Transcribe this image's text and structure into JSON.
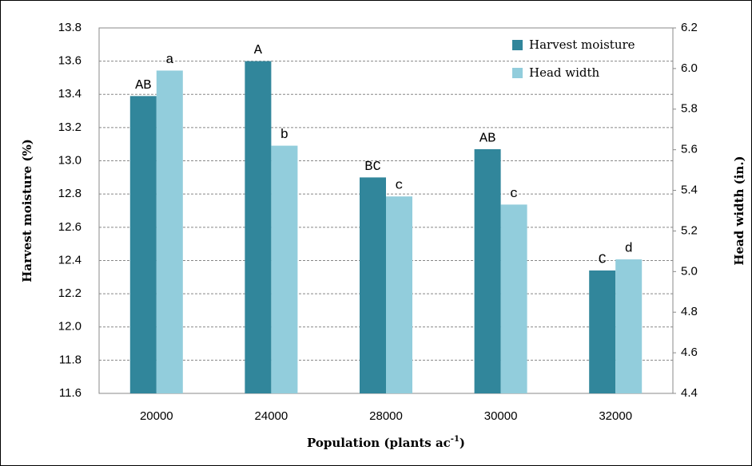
{
  "chart_data": {
    "type": "bar",
    "xlabel": {
      "text": "Population (plants ac",
      "sup": "-1",
      "tail": ")"
    },
    "ylabel": "Harvest moisture (%)",
    "y2label": "Head width (in.)",
    "categories": [
      "20000",
      "24000",
      "28000",
      "30000",
      "32000"
    ],
    "series": [
      {
        "name": "Harvest moisture",
        "color": "#31869b",
        "values": [
          13.39,
          13.6,
          12.9,
          13.07,
          12.34
        ],
        "labels": [
          "AB",
          "A",
          "BC",
          "AB",
          "C"
        ]
      },
      {
        "name": "Head width",
        "color": "#92cddc",
        "axis": "y2",
        "values": [
          5.99,
          5.62,
          5.37,
          5.33,
          5.06
        ],
        "labels": [
          "a",
          "b",
          "c",
          "c",
          "d"
        ]
      }
    ],
    "ylim": [
      11.6,
      13.8
    ],
    "yticks": [
      11.6,
      11.8,
      {
        "value": 12,
        "label": "12.0"
      },
      12.2,
      12.4,
      12.6,
      12.8,
      {
        "value": 13,
        "label": "13.0"
      },
      13.2,
      13.4,
      13.6,
      13.8
    ],
    "y2lim": [
      4.4,
      6.2
    ],
    "y2ticks": [
      4.4,
      4.6,
      4.8,
      {
        "value": 5,
        "label": "5.0"
      },
      5.2,
      5.4,
      5.6,
      5.8,
      {
        "value": 6,
        "label": "6.0"
      },
      6.2
    ],
    "grid": true,
    "legend": "top-right"
  }
}
